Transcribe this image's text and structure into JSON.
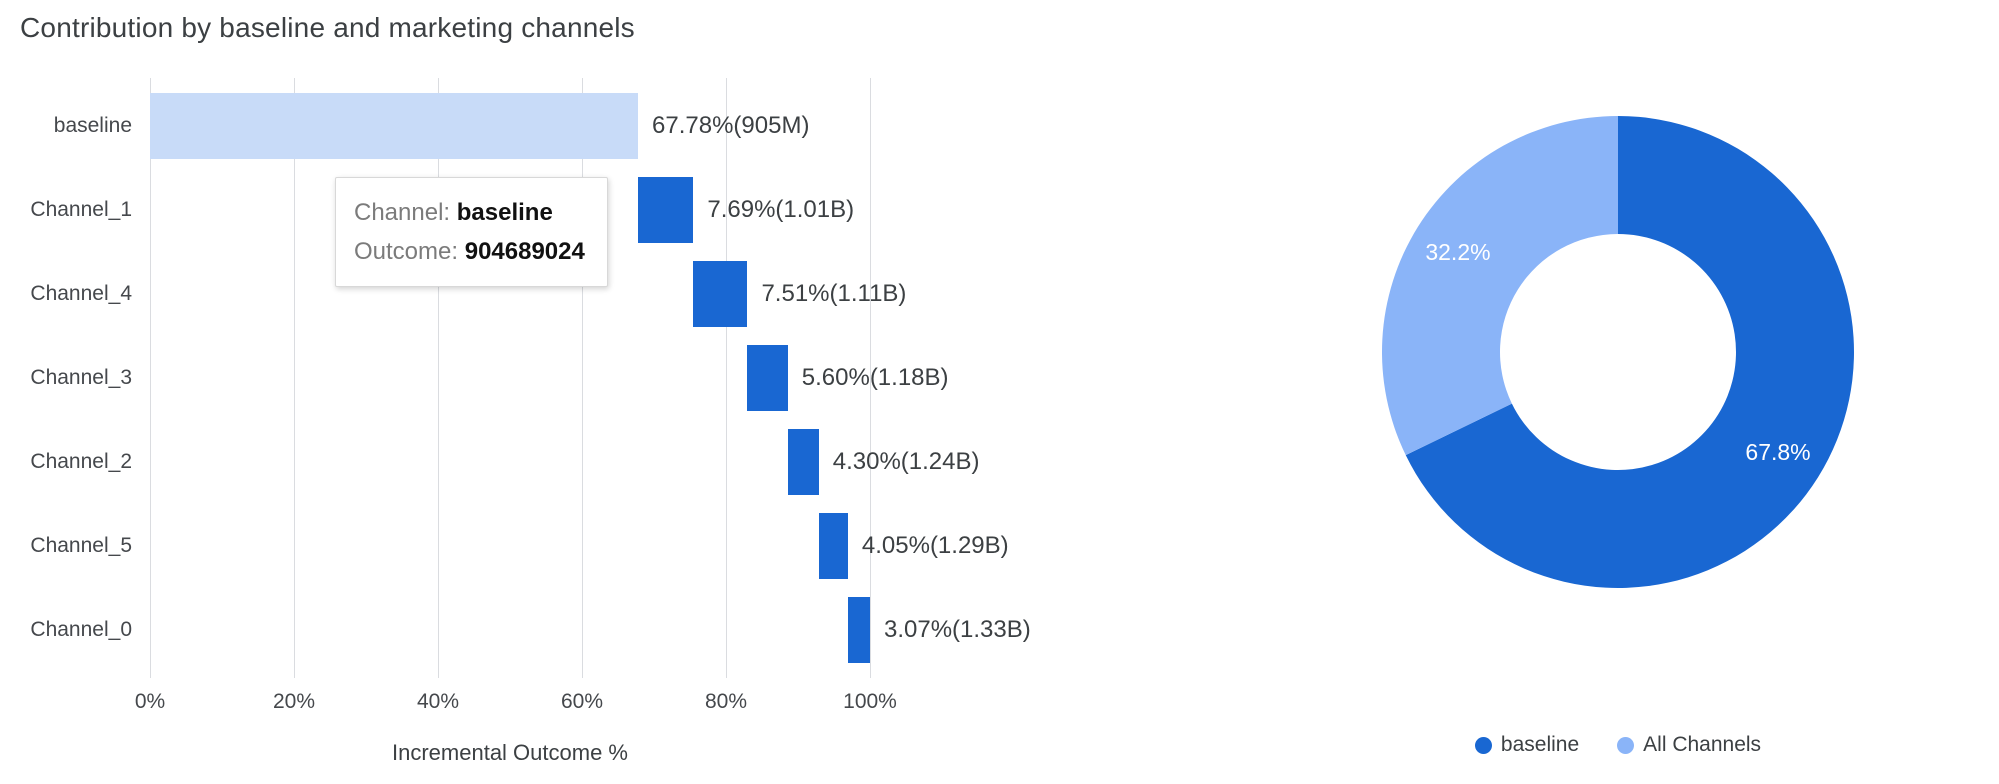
{
  "title": "Contribution by baseline and marketing channels",
  "chart_data": [
    {
      "type": "bar",
      "variant": "horizontal-waterfall",
      "title": "Contribution by baseline and marketing channels",
      "xlabel": "Incremental Outcome %",
      "xlim": [
        0,
        100
      ],
      "grid": true,
      "x_ticks": [
        {
          "value": 0,
          "label": "0%"
        },
        {
          "value": 20,
          "label": "20%"
        },
        {
          "value": 40,
          "label": "40%"
        },
        {
          "value": 60,
          "label": "60%"
        },
        {
          "value": 80,
          "label": "80%"
        },
        {
          "value": 100,
          "label": "100%"
        }
      ],
      "categories": [
        "baseline",
        "Channel_1",
        "Channel_4",
        "Channel_3",
        "Channel_2",
        "Channel_5",
        "Channel_0"
      ],
      "series": [
        {
          "name": "Incremental Outcome %",
          "starts": [
            0,
            67.78,
            75.47,
            82.98,
            88.58,
            92.88,
            96.93
          ],
          "values": [
            67.78,
            7.69,
            7.51,
            5.6,
            4.3,
            4.05,
            3.07
          ]
        }
      ],
      "bar_labels": [
        "67.78%(905M)",
        "7.69%(1.01B)",
        "7.51%(1.11B)",
        "5.60%(1.18B)",
        "4.30%(1.24B)",
        "4.05%(1.29B)",
        "3.07%(1.33B)"
      ],
      "colors": {
        "baseline_bar": "#c8dbf8",
        "channel_bar": "#1967d2",
        "gridline": "#dadce0",
        "label_text": "#3c4043"
      }
    },
    {
      "type": "pie",
      "variant": "donut",
      "start_angle_deg": 0,
      "inner_radius_ratio": 0.5,
      "legend_position": "bottom",
      "slices": [
        {
          "label": "baseline",
          "value": 67.8,
          "display": "67.8%",
          "color": "#1967d2"
        },
        {
          "label": "All Channels",
          "value": 32.2,
          "display": "32.2%",
          "color": "#8ab4f8"
        }
      ]
    }
  ],
  "tooltip": {
    "rows": [
      {
        "label": "Channel:",
        "value": "baseline"
      },
      {
        "label": "Outcome:",
        "value": "904689024"
      }
    ]
  }
}
